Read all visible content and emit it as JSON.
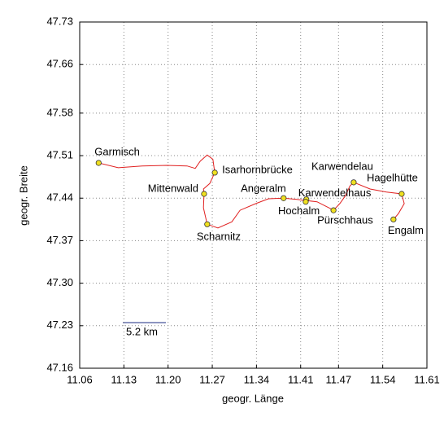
{
  "chart_data": {
    "type": "scatter",
    "xlabel": "geogr. Länge",
    "ylabel": "geogr. Breite",
    "xlim": [
      11.06,
      11.61
    ],
    "xticks": [
      11.06,
      11.13,
      {
        "value": 11.2,
        "label": "11.20"
      },
      11.27,
      11.34,
      11.41,
      11.47,
      11.54,
      11.61
    ],
    "ylim": [
      47.16,
      47.73
    ],
    "yticks": [
      47.73,
      47.66,
      47.58,
      47.51,
      47.44,
      47.37,
      {
        "value": 47.3,
        "label": "47.30"
      },
      47.23,
      47.16
    ],
    "grid": true,
    "scale_label": "5.2 km",
    "track": {
      "color": "#e02020",
      "x": [
        11.09,
        11.121,
        11.159,
        11.198,
        11.23,
        11.243,
        11.251,
        11.262,
        11.271,
        11.274,
        11.266,
        11.256,
        11.257,
        11.256,
        11.262,
        11.279,
        11.301,
        11.314,
        11.339,
        11.359,
        11.383,
        11.404,
        11.419,
        11.436,
        11.455,
        11.462,
        11.472,
        11.481,
        11.488,
        11.494,
        11.52,
        11.546,
        11.57,
        11.574,
        11.565,
        11.557
      ],
      "y": [
        47.498,
        47.49,
        47.493,
        47.494,
        47.493,
        47.489,
        47.501,
        47.511,
        47.504,
        47.482,
        47.464,
        47.455,
        47.447,
        47.424,
        47.397,
        47.391,
        47.401,
        47.42,
        47.431,
        47.439,
        47.44,
        47.438,
        47.436,
        47.434,
        47.424,
        47.42,
        47.431,
        47.444,
        47.46,
        47.466,
        47.455,
        47.45,
        47.447,
        47.431,
        47.415,
        47.405
      ]
    },
    "points": {
      "color": "#f0e020",
      "labels": [
        "Garmisch",
        "Isarhornbrücke",
        "Mittenwald",
        "Scharnitz",
        "Angeralm",
        "Karwendelhaus",
        "Hochalm",
        "Pürschhaus",
        "Karwendelau",
        "Hagelhütte",
        "Engalm"
      ],
      "x": [
        11.09,
        11.274,
        11.257,
        11.262,
        11.383,
        11.419,
        11.418,
        11.462,
        11.494,
        11.57,
        11.557
      ],
      "y": [
        47.498,
        47.482,
        47.447,
        47.397,
        47.44,
        47.438,
        47.434,
        47.42,
        47.466,
        47.447,
        47.405
      ]
    }
  }
}
